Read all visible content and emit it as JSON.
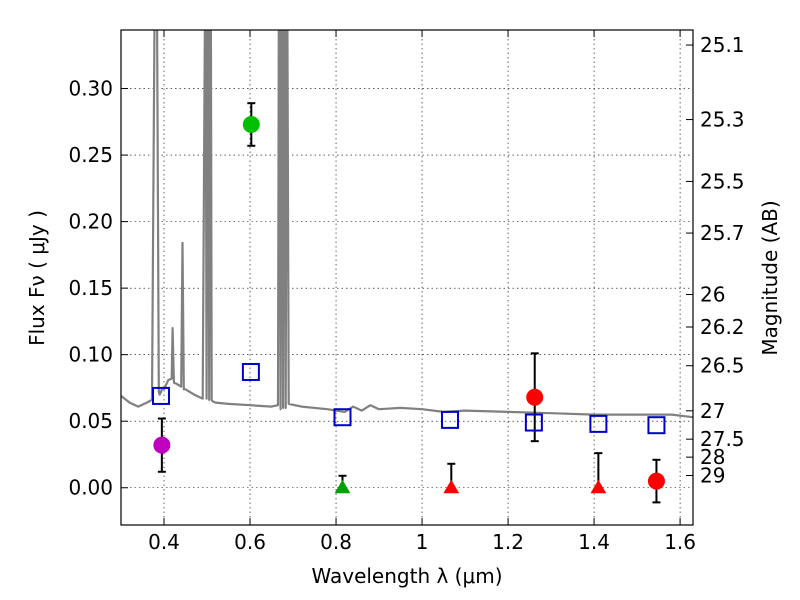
{
  "chart_data": {
    "type": "scatter",
    "xlabel": "Wavelength  λ (μm)",
    "ylabel": "Flux  Fν  ( μJy )",
    "y2label": "Magnitude (AB)",
    "xlim": [
      0.3,
      1.63
    ],
    "ylim": [
      -0.028,
      0.344
    ],
    "grid": true,
    "xticks": [
      0.4,
      0.6,
      0.8,
      1.0,
      1.2,
      1.4,
      1.6
    ],
    "xtick_labels": [
      "0.4",
      "0.6",
      "0.8",
      "1",
      "1.2",
      "1.4",
      "1.6"
    ],
    "yticks": [
      0.0,
      0.05,
      0.1,
      0.15,
      0.2,
      0.25,
      0.3
    ],
    "ytick_labels": [
      "0.00",
      "0.05",
      "0.10",
      "0.15",
      "0.20",
      "0.25",
      "0.30"
    ],
    "mag_ticks": [
      {
        "label": "25.1",
        "flux": 0.3327
      },
      {
        "label": "25.3",
        "flux": 0.2767
      },
      {
        "label": "25.5",
        "flux": 0.2302
      },
      {
        "label": "25.7",
        "flux": 0.1914
      },
      {
        "label": "26",
        "flux": 0.1452
      },
      {
        "label": "26.2",
        "flux": 0.1208
      },
      {
        "label": "26.5",
        "flux": 0.0917
      },
      {
        "label": "27",
        "flux": 0.0578
      },
      {
        "label": "27.5",
        "flux": 0.0365
      },
      {
        "label": "28",
        "flux": 0.023
      },
      {
        "label": "29",
        "flux": 0.0092
      }
    ],
    "model_spectrum": {
      "name": "model SED",
      "color": "#808080",
      "x": [
        0.3,
        0.32,
        0.34,
        0.36,
        0.372,
        0.378,
        0.381,
        0.384,
        0.388,
        0.39,
        0.393,
        0.396,
        0.4,
        0.41,
        0.418,
        0.42,
        0.423,
        0.43,
        0.44,
        0.443,
        0.446,
        0.45,
        0.47,
        0.49,
        0.495,
        0.497,
        0.499,
        0.501,
        0.503,
        0.505,
        0.507,
        0.509,
        0.511,
        0.513,
        0.52,
        0.55,
        0.6,
        0.65,
        0.665,
        0.667,
        0.669,
        0.671,
        0.673,
        0.675,
        0.677,
        0.679,
        0.681,
        0.683,
        0.685,
        0.687,
        0.69,
        0.72,
        0.78,
        0.82,
        0.84,
        0.86,
        0.88,
        0.9,
        0.95,
        1.0,
        1.05,
        1.1,
        1.2,
        1.3,
        1.4,
        1.5,
        1.58,
        1.63
      ],
      "y": [
        0.069,
        0.064,
        0.061,
        0.064,
        0.066,
        0.35,
        0.35,
        0.35,
        0.072,
        0.07,
        0.072,
        0.075,
        0.074,
        0.081,
        0.082,
        0.12,
        0.079,
        0.078,
        0.076,
        0.184,
        0.074,
        0.074,
        0.07,
        0.067,
        0.35,
        0.35,
        0.067,
        0.35,
        0.35,
        0.066,
        0.35,
        0.35,
        0.066,
        0.065,
        0.064,
        0.063,
        0.062,
        0.061,
        0.062,
        0.35,
        0.35,
        0.059,
        0.35,
        0.35,
        0.06,
        0.35,
        0.35,
        0.06,
        0.35,
        0.35,
        0.063,
        0.061,
        0.059,
        0.057,
        0.061,
        0.058,
        0.062,
        0.059,
        0.06,
        0.059,
        0.057,
        0.058,
        0.057,
        0.056,
        0.055,
        0.055,
        0.055,
        0.053
      ]
    },
    "series": [
      {
        "name": "magenta point",
        "marker": "circle",
        "color": "#bf00bf",
        "points": [
          {
            "x": 0.395,
            "y": 0.032,
            "err": 0.02
          }
        ]
      },
      {
        "name": "green point",
        "marker": "circle",
        "color": "#00c000",
        "points": [
          {
            "x": 0.603,
            "y": 0.273,
            "err": 0.016
          }
        ]
      },
      {
        "name": "red points",
        "marker": "circle",
        "color": "#ff0000",
        "points": [
          {
            "x": 1.262,
            "y": 0.068,
            "err": 0.033
          },
          {
            "x": 1.545,
            "y": 0.005,
            "err": 0.016
          }
        ]
      },
      {
        "name": "green upper limit",
        "marker": "triangle",
        "color": "#00a000",
        "points": [
          {
            "x": 0.815,
            "y": 0.0,
            "err_up": 0.009
          }
        ]
      },
      {
        "name": "red upper limits",
        "marker": "triangle",
        "color": "#ff0000",
        "points": [
          {
            "x": 1.068,
            "y": 0.0,
            "err_up": 0.018
          },
          {
            "x": 1.41,
            "y": 0.0,
            "err_up": 0.026
          }
        ]
      },
      {
        "name": "model photometry",
        "marker": "open-square",
        "color": "#0000cc",
        "points": [
          {
            "x": 0.393,
            "y": 0.069
          },
          {
            "x": 0.602,
            "y": 0.087
          },
          {
            "x": 0.815,
            "y": 0.053
          },
          {
            "x": 1.065,
            "y": 0.051
          },
          {
            "x": 1.26,
            "y": 0.049
          },
          {
            "x": 1.41,
            "y": 0.048
          },
          {
            "x": 1.545,
            "y": 0.047
          }
        ]
      }
    ]
  }
}
